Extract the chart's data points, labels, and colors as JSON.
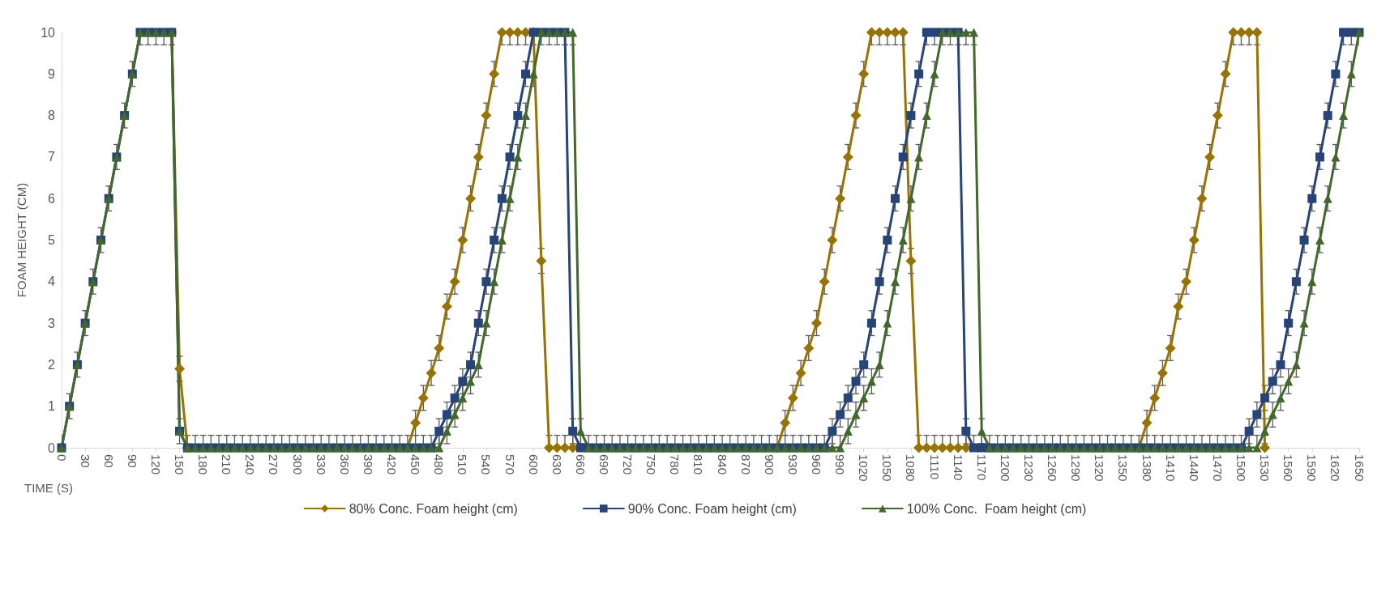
{
  "chart_data": {
    "type": "line",
    "xlabel": "TIME (S)",
    "ylabel": "FOAM HEIGHT (CM)",
    "x": [
      0,
      10,
      20,
      30,
      40,
      50,
      60,
      70,
      80,
      90,
      100,
      110,
      120,
      130,
      140,
      150,
      160,
      170,
      180,
      190,
      200,
      210,
      220,
      230,
      240,
      250,
      260,
      270,
      280,
      290,
      300,
      310,
      320,
      330,
      340,
      350,
      360,
      370,
      380,
      390,
      400,
      410,
      420,
      430,
      440,
      450,
      460,
      470,
      480,
      490,
      500,
      510,
      520,
      530,
      540,
      550,
      560,
      570,
      580,
      590,
      600,
      610,
      620,
      630,
      640,
      650,
      660,
      670,
      680,
      690,
      700,
      710,
      720,
      730,
      740,
      750,
      760,
      770,
      780,
      790,
      800,
      810,
      820,
      830,
      840,
      850,
      860,
      870,
      880,
      890,
      900,
      910,
      920,
      930,
      940,
      950,
      960,
      970,
      980,
      990,
      1000,
      1010,
      1020,
      1030,
      1040,
      1050,
      1060,
      1070,
      1080,
      1090,
      1100,
      1110,
      1120,
      1130,
      1140,
      1150,
      1160,
      1170,
      1180,
      1190,
      1200,
      1210,
      1220,
      1230,
      1240,
      1250,
      1260,
      1270,
      1280,
      1290,
      1300,
      1310,
      1320,
      1330,
      1340,
      1350,
      1360,
      1370,
      1380,
      1390,
      1400,
      1410,
      1420,
      1430,
      1440,
      1450,
      1460,
      1470,
      1480,
      1490,
      1500,
      1510,
      1520,
      1530,
      1540,
      1550,
      1560,
      1570,
      1580,
      1590,
      1600,
      1610,
      1620,
      1630,
      1640,
      1650
    ],
    "xlim": [
      0,
      1650
    ],
    "xticks": [
      0,
      30,
      60,
      90,
      120,
      150,
      180,
      210,
      240,
      270,
      300,
      330,
      360,
      390,
      420,
      450,
      480,
      510,
      540,
      570,
      600,
      630,
      660,
      690,
      720,
      750,
      780,
      810,
      840,
      870,
      900,
      930,
      960,
      990,
      1020,
      1050,
      1080,
      1110,
      1140,
      1170,
      1200,
      1230,
      1260,
      1290,
      1320,
      1350,
      1380,
      1410,
      1440,
      1470,
      1500,
      1530,
      1560,
      1590,
      1620,
      1650
    ],
    "ylim": [
      0,
      10
    ],
    "yticks": [
      0,
      1,
      2,
      3,
      4,
      5,
      6,
      7,
      8,
      9,
      10
    ],
    "grid": false,
    "legend": "bottom",
    "line_style": "solid",
    "series": [
      {
        "name": "80% Conc. Foam height (cm)",
        "color": "#997300",
        "marker": "diamond",
        "values": [
          null,
          null,
          null,
          null,
          null,
          null,
          null,
          null,
          null,
          null,
          null,
          null,
          null,
          null,
          10,
          1.9,
          0,
          null,
          null,
          null,
          null,
          null,
          null,
          null,
          null,
          null,
          null,
          null,
          null,
          null,
          null,
          null,
          null,
          null,
          null,
          null,
          null,
          null,
          null,
          null,
          null,
          null,
          null,
          null,
          0,
          0.6,
          1.2,
          1.8,
          2.4,
          3.4,
          4,
          5,
          6,
          7,
          8,
          9,
          10,
          10,
          10,
          10,
          10,
          4.5,
          0,
          0,
          0,
          0,
          null,
          null,
          null,
          null,
          null,
          null,
          null,
          null,
          null,
          null,
          null,
          null,
          null,
          null,
          null,
          null,
          null,
          null,
          null,
          null,
          null,
          null,
          null,
          null,
          null,
          0,
          0.6,
          1.2,
          1.8,
          2.4,
          3,
          4,
          5,
          6,
          7,
          8,
          9,
          10,
          10,
          10,
          10,
          10,
          4.5,
          0,
          0,
          0,
          0,
          0,
          0,
          0,
          null,
          null,
          null,
          null,
          null,
          null,
          null,
          null,
          null,
          null,
          null,
          null,
          null,
          null,
          null,
          null,
          null,
          null,
          null,
          null,
          null,
          0,
          0.6,
          1.2,
          1.8,
          2.4,
          3.4,
          4,
          5,
          6,
          7,
          8,
          9,
          10,
          10,
          10,
          10,
          0,
          null,
          null,
          null,
          null,
          null,
          null,
          null,
          null,
          null,
          null,
          null,
          null
        ],
        "errors": [
          null,
          null,
          null,
          null,
          null,
          null,
          null,
          null,
          null,
          null,
          null,
          null,
          null,
          null,
          null,
          0.3,
          null,
          null,
          null,
          null,
          null,
          null,
          null,
          null,
          null,
          null,
          null,
          null,
          null,
          null,
          null,
          null,
          null,
          null,
          null,
          null,
          null,
          null,
          null,
          null,
          null,
          null,
          null,
          null,
          null,
          0.3,
          0.3,
          0.3,
          0.3,
          0.3,
          0.3,
          0.3,
          0.3,
          0.3,
          0.3,
          0.3,
          0.3,
          0.3,
          0.3,
          0.3,
          null,
          0.3,
          0.3,
          0.3,
          0.3,
          0.3,
          null,
          null,
          null,
          null,
          null,
          null,
          null,
          null,
          null,
          null,
          null,
          null,
          null,
          null,
          null,
          null,
          null,
          null,
          null,
          null,
          null,
          null,
          null,
          null,
          null,
          null,
          0.3,
          0.3,
          0.3,
          0.3,
          0.3,
          0.3,
          0.3,
          0.3,
          0.3,
          0.3,
          0.3,
          0.3,
          0.3,
          0.3,
          0.3,
          0.3,
          0.3,
          0.3,
          0.3,
          0.3,
          0.3,
          0.3,
          0.3,
          0.3,
          null,
          null,
          null,
          null,
          null,
          null,
          null,
          null,
          null,
          null,
          null,
          null,
          null,
          null,
          null,
          null,
          null,
          null,
          null,
          null,
          null,
          null,
          0.3,
          0.3,
          0.3,
          0.3,
          0.3,
          0.3,
          0.3,
          0.3,
          0.3,
          0.3,
          0.3,
          0.3,
          0.3,
          0.3,
          0.3,
          0.3,
          null,
          null,
          null,
          null,
          null,
          null,
          null,
          null,
          null,
          null,
          null,
          null
        ]
      },
      {
        "name": "90% Conc. Foam height (cm)",
        "color": "#264478",
        "marker": "square",
        "values": [
          0,
          1,
          2,
          3,
          4,
          5,
          6,
          7,
          8,
          9,
          10,
          10,
          10,
          10,
          10,
          0.4,
          0,
          0,
          0,
          0,
          0,
          0,
          0,
          0,
          0,
          0,
          0,
          0,
          0,
          0,
          0,
          0,
          0,
          0,
          0,
          0,
          0,
          0,
          0,
          0,
          0,
          0,
          0,
          0,
          0,
          0,
          0,
          0,
          0.4,
          0.8,
          1.2,
          1.6,
          2,
          3,
          4,
          5,
          6,
          7,
          8,
          9,
          10,
          10,
          10,
          10,
          10,
          0.4,
          0,
          0,
          0,
          0,
          0,
          0,
          0,
          0,
          0,
          0,
          0,
          0,
          0,
          0,
          0,
          0,
          0,
          0,
          0,
          0,
          0,
          0,
          0,
          0,
          0,
          0,
          0,
          0,
          0,
          0,
          0,
          0,
          0.4,
          0.8,
          1.2,
          1.6,
          2,
          3,
          4,
          5,
          6,
          7,
          8,
          9,
          10,
          10,
          10,
          10,
          10,
          0.4,
          0,
          0,
          0,
          0,
          0,
          0,
          0,
          0,
          0,
          0,
          0,
          0,
          0,
          0,
          0,
          0,
          0,
          0,
          0,
          0,
          0,
          0,
          0,
          0,
          0,
          0,
          0,
          0,
          0,
          0,
          0,
          0,
          0,
          0,
          0,
          0.4,
          0.8,
          1.2,
          1.6,
          2,
          3,
          4,
          5,
          6,
          7,
          8,
          9,
          10,
          10,
          10
        ],
        "errors": [
          null,
          null,
          null,
          null,
          null,
          null,
          null,
          null,
          null,
          null,
          null,
          null,
          null,
          null,
          null,
          null,
          null,
          null,
          null,
          null,
          null,
          null,
          null,
          null,
          null,
          null,
          null,
          null,
          null,
          null,
          null,
          null,
          null,
          null,
          null,
          null,
          null,
          null,
          null,
          null,
          null,
          null,
          null,
          null,
          null,
          null,
          null,
          null,
          0.3,
          0.3,
          0.3,
          0.3,
          0.3,
          0.3,
          0.3,
          0.3,
          0.3,
          0.3,
          0.3,
          0.3,
          0.3,
          null,
          null,
          null,
          null,
          0.3,
          0.3,
          null,
          null,
          null,
          null,
          null,
          null,
          null,
          null,
          null,
          null,
          null,
          null,
          null,
          null,
          null,
          null,
          null,
          null,
          null,
          null,
          null,
          null,
          null,
          null,
          null,
          null,
          null,
          null,
          null,
          null,
          null,
          0.3,
          0.3,
          0.3,
          0.3,
          0.3,
          0.3,
          0.3,
          0.3,
          0.3,
          0.3,
          0.3,
          0.3,
          0.3,
          0.3,
          null,
          null,
          null,
          0.3,
          0.3,
          0.3,
          null,
          null,
          null,
          null,
          null,
          null,
          null,
          null,
          null,
          null,
          null,
          null,
          null,
          null,
          null,
          null,
          null,
          null,
          null,
          null,
          null,
          null,
          null,
          null,
          null,
          null,
          null,
          null,
          null,
          null,
          null,
          null,
          null,
          0.3,
          0.3,
          0.3,
          0.3,
          0.3,
          0.3,
          0.3,
          0.3,
          0.3,
          0.3,
          0.3,
          0.3,
          0.3,
          0.3,
          null
        ]
      },
      {
        "name": "100% Conc.  Foam height (cm)",
        "color": "#43682b",
        "marker": "triangle",
        "values": [
          0,
          1,
          2,
          3,
          4,
          5,
          6,
          7,
          8,
          9,
          10,
          10,
          10,
          10,
          10,
          0.4,
          0,
          0,
          0,
          0,
          0,
          0,
          0,
          0,
          0,
          0,
          0,
          0,
          0,
          0,
          0,
          0,
          0,
          0,
          0,
          0,
          0,
          0,
          0,
          0,
          0,
          0,
          0,
          0,
          0,
          0,
          0,
          0,
          0,
          0.4,
          0.8,
          1.2,
          1.6,
          2,
          3,
          4,
          5,
          6,
          7,
          8,
          9,
          10,
          10,
          10,
          10,
          10,
          0.4,
          0,
          0,
          0,
          0,
          0,
          0,
          0,
          0,
          0,
          0,
          0,
          0,
          0,
          0,
          0,
          0,
          0,
          0,
          0,
          0,
          0,
          0,
          0,
          0,
          0,
          0,
          0,
          0,
          0,
          0,
          0,
          0,
          0,
          0.4,
          0.8,
          1.2,
          1.6,
          2,
          3,
          4,
          5,
          6,
          7,
          8,
          9,
          10,
          10,
          10,
          10,
          10,
          0.4,
          0,
          0,
          0,
          0,
          0,
          0,
          0,
          0,
          0,
          0,
          0,
          0,
          0,
          0,
          0,
          0,
          0,
          0,
          0,
          0,
          0,
          0,
          0,
          0,
          0,
          0,
          0,
          0,
          0,
          0,
          0,
          0,
          0,
          0,
          0,
          0.4,
          0.8,
          1.2,
          1.6,
          2,
          3,
          4,
          5,
          6,
          7,
          8,
          9,
          10
        ],
        "errors": [
          0.3,
          0.3,
          0.3,
          0.3,
          0.3,
          0.3,
          0.3,
          0.3,
          0.3,
          0.3,
          0.3,
          0.3,
          0.3,
          0.3,
          0.3,
          0.3,
          0.3,
          0.3,
          0.3,
          0.3,
          0.3,
          0.3,
          0.3,
          0.3,
          0.3,
          0.3,
          0.3,
          0.3,
          0.3,
          0.3,
          0.3,
          0.3,
          0.3,
          0.3,
          0.3,
          0.3,
          0.3,
          0.3,
          0.3,
          0.3,
          0.3,
          0.3,
          0.3,
          0.3,
          0.3,
          0.3,
          0.3,
          0.3,
          0.3,
          0.3,
          0.3,
          0.3,
          0.3,
          0.3,
          0.3,
          0.3,
          0.3,
          0.3,
          0.3,
          0.3,
          0.3,
          0.3,
          0.3,
          0.3,
          0.3,
          0.3,
          0.3,
          0.3,
          0.3,
          0.3,
          0.3,
          0.3,
          0.3,
          0.3,
          0.3,
          0.3,
          0.3,
          0.3,
          0.3,
          0.3,
          0.3,
          0.3,
          0.3,
          0.3,
          0.3,
          0.3,
          0.3,
          0.3,
          0.3,
          0.3,
          0.3,
          0.3,
          0.3,
          0.3,
          0.3,
          0.3,
          0.3,
          0.3,
          0.3,
          0.3,
          0.3,
          0.3,
          0.3,
          0.3,
          0.3,
          0.3,
          0.3,
          0.3,
          0.3,
          0.3,
          0.3,
          0.3,
          0.3,
          0.3,
          0.3,
          0.3,
          0.3,
          0.3,
          0.3,
          0.3,
          0.3,
          0.3,
          0.3,
          0.3,
          0.3,
          0.3,
          0.3,
          0.3,
          0.3,
          0.3,
          0.3,
          0.3,
          0.3,
          0.3,
          0.3,
          0.3,
          0.3,
          0.3,
          0.3,
          0.3,
          0.3,
          0.3,
          0.3,
          0.3,
          0.3,
          0.3,
          0.3,
          0.3,
          0.3,
          0.3,
          0.3,
          0.3,
          0.3,
          0.3,
          0.3,
          0.3,
          0.3,
          0.3,
          0.3,
          0.3,
          0.3,
          0.3,
          0.3,
          0.3,
          0.3,
          0.3
        ]
      }
    ]
  }
}
